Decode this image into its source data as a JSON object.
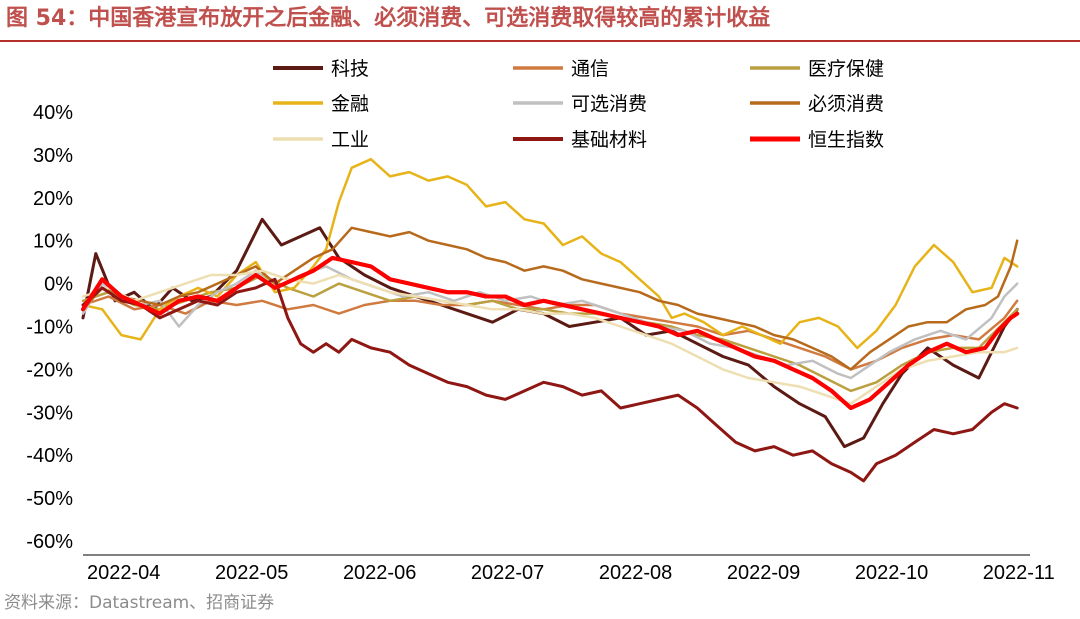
{
  "figure": {
    "title": "图 54：中国香港宣布放开之后金融、必须消费、可选消费取得较高的累计收益",
    "source": "资料来源：Datastream、招商证券"
  },
  "chart_data": {
    "type": "line",
    "title": "图 54：中国香港宣布放开之后金融、必须消费、可选消费取得较高的累计收益",
    "xlabel": "",
    "ylabel": "",
    "ylim": [
      -60,
      40
    ],
    "yticks": [
      "40%",
      "30%",
      "20%",
      "10%",
      "0%",
      "-10%",
      "-20%",
      "-30%",
      "-40%",
      "-50%",
      "-60%"
    ],
    "ytick_values": [
      40,
      30,
      20,
      10,
      0,
      -10,
      -20,
      -30,
      -40,
      -50,
      -60
    ],
    "xlim": [
      0,
      7.4
    ],
    "xticks": [
      "2022-04",
      "2022-05",
      "2022-06",
      "2022-07",
      "2022-08",
      "2022-09",
      "2022-10",
      "2022-11"
    ],
    "xtick_values": [
      0,
      1,
      2,
      3,
      4,
      5,
      6,
      7
    ],
    "legend_position": "top",
    "grid": false,
    "series": [
      {
        "name": "科技",
        "color": "#5b1a13",
        "width": 3,
        "x": [
          0,
          0.1,
          0.25,
          0.4,
          0.55,
          0.7,
          0.85,
          1.0,
          1.2,
          1.4,
          1.55,
          1.7,
          1.85,
          2.0,
          2.2,
          2.4,
          2.6,
          2.8,
          3.0,
          3.2,
          3.4,
          3.6,
          3.8,
          4.0,
          4.2,
          4.4,
          4.6,
          4.8,
          5.0,
          5.2,
          5.4,
          5.6,
          5.8,
          5.95,
          6.1,
          6.25,
          6.4,
          6.6,
          6.8,
          7.0,
          7.2,
          7.3
        ],
        "values": [
          -8,
          7,
          -4,
          -2,
          -6,
          -1,
          -4,
          -3,
          3,
          15,
          9,
          11,
          13,
          6,
          2,
          -1,
          -3,
          -5,
          -7,
          -9,
          -6,
          -7,
          -10,
          -9,
          -8,
          -12,
          -11,
          -14,
          -17,
          -19,
          -24,
          -28,
          -31,
          -38,
          -36,
          -28,
          -21,
          -15,
          -19,
          -22,
          -10,
          -6
        ]
      },
      {
        "name": "通信",
        "color": "#d07a40",
        "width": 2.5,
        "x": [
          0,
          0.2,
          0.4,
          0.6,
          0.8,
          1.0,
          1.2,
          1.4,
          1.6,
          1.8,
          2.0,
          2.2,
          2.4,
          2.6,
          2.8,
          3.0,
          3.2,
          3.4,
          3.6,
          3.8,
          4.0,
          4.2,
          4.4,
          4.6,
          4.8,
          5.0,
          5.2,
          5.4,
          5.6,
          5.8,
          6.0,
          6.2,
          6.4,
          6.6,
          6.8,
          7.0,
          7.2,
          7.3
        ],
        "values": [
          -5,
          -3,
          -6,
          -5,
          -7,
          -4,
          -5,
          -4,
          -6,
          -5,
          -7,
          -5,
          -4,
          -4,
          -5,
          -5,
          -4,
          -5,
          -6,
          -5,
          -5,
          -7,
          -8,
          -9,
          -10,
          -12,
          -11,
          -13,
          -15,
          -17,
          -20,
          -18,
          -15,
          -13,
          -12,
          -13,
          -8,
          -4
        ]
      },
      {
        "name": "医疗保健",
        "color": "#bba040",
        "width": 2.5,
        "x": [
          0,
          0.2,
          0.4,
          0.6,
          0.8,
          1.0,
          1.2,
          1.4,
          1.6,
          1.8,
          2.0,
          2.2,
          2.4,
          2.6,
          2.8,
          3.0,
          3.2,
          3.4,
          3.6,
          3.8,
          4.0,
          4.2,
          4.4,
          4.6,
          4.8,
          5.0,
          5.2,
          5.4,
          5.6,
          5.8,
          6.0,
          6.2,
          6.4,
          6.6,
          6.8,
          7.0,
          7.2,
          7.3
        ],
        "values": [
          -4,
          -2,
          -5,
          -6,
          -4,
          -2,
          -1,
          2,
          -1,
          -3,
          0,
          -2,
          -4,
          -3,
          -4,
          -5,
          -4,
          -6,
          -6,
          -7,
          -7,
          -8,
          -9,
          -10,
          -12,
          -13,
          -15,
          -17,
          -19,
          -22,
          -25,
          -23,
          -19,
          -16,
          -15,
          -15,
          -9,
          -6
        ]
      },
      {
        "name": "金融",
        "color": "#e6b418",
        "width": 2.5,
        "x": [
          0,
          0.15,
          0.3,
          0.45,
          0.6,
          0.75,
          0.9,
          1.05,
          1.2,
          1.35,
          1.5,
          1.65,
          1.8,
          1.9,
          2.0,
          2.1,
          2.25,
          2.4,
          2.55,
          2.7,
          2.85,
          3.0,
          3.15,
          3.3,
          3.45,
          3.6,
          3.75,
          3.9,
          4.05,
          4.2,
          4.35,
          4.5,
          4.6,
          4.7,
          4.85,
          5.0,
          5.15,
          5.3,
          5.45,
          5.6,
          5.75,
          5.9,
          6.05,
          6.2,
          6.35,
          6.5,
          6.65,
          6.8,
          6.95,
          7.1,
          7.2,
          7.3
        ],
        "values": [
          -5,
          -6,
          -12,
          -13,
          -6,
          -3,
          -1,
          -3,
          2,
          5,
          -2,
          -1,
          4,
          8,
          19,
          27,
          29,
          25,
          26,
          24,
          25,
          23,
          18,
          19,
          15,
          14,
          9,
          11,
          7,
          5,
          1,
          -3,
          -8,
          -7,
          -9,
          -12,
          -10,
          -12,
          -14,
          -9,
          -8,
          -10,
          -15,
          -11,
          -5,
          4,
          9,
          5,
          -2,
          -1,
          6,
          4
        ]
      },
      {
        "name": "可选消费",
        "color": "#c0c0c0",
        "width": 2.5,
        "x": [
          0,
          0.15,
          0.3,
          0.45,
          0.6,
          0.75,
          0.9,
          1.05,
          1.2,
          1.35,
          1.5,
          1.7,
          1.9,
          2.1,
          2.3,
          2.5,
          2.7,
          2.9,
          3.1,
          3.3,
          3.5,
          3.7,
          3.9,
          4.1,
          4.3,
          4.5,
          4.7,
          4.9,
          5.1,
          5.3,
          5.5,
          5.7,
          5.9,
          6.0,
          6.1,
          6.3,
          6.5,
          6.7,
          6.9,
          7.1,
          7.2,
          7.3
        ],
        "values": [
          -7,
          0,
          -3,
          -5,
          -4,
          -10,
          -5,
          -2,
          0,
          3,
          -1,
          2,
          4,
          1,
          -1,
          -3,
          -2,
          -4,
          -2,
          -4,
          -3,
          -5,
          -4,
          -6,
          -8,
          -10,
          -11,
          -14,
          -15,
          -17,
          -19,
          -18,
          -21,
          -22,
          -20,
          -16,
          -13,
          -11,
          -13,
          -8,
          -3,
          0
        ]
      },
      {
        "name": "必须消费",
        "color": "#b86a1c",
        "width": 2.5,
        "x": [
          0,
          0.15,
          0.3,
          0.45,
          0.6,
          0.75,
          0.9,
          1.05,
          1.2,
          1.35,
          1.5,
          1.65,
          1.8,
          1.95,
          2.1,
          2.25,
          2.4,
          2.55,
          2.7,
          2.85,
          3.0,
          3.15,
          3.3,
          3.45,
          3.6,
          3.75,
          3.9,
          4.05,
          4.2,
          4.35,
          4.5,
          4.65,
          4.8,
          4.95,
          5.1,
          5.25,
          5.4,
          5.55,
          5.7,
          5.85,
          6.0,
          6.15,
          6.3,
          6.45,
          6.6,
          6.75,
          6.9,
          7.05,
          7.15,
          7.25,
          7.3
        ],
        "values": [
          -6,
          -1,
          -3,
          -4,
          -5,
          -3,
          -2,
          0,
          2,
          4,
          0,
          3,
          6,
          8,
          13,
          12,
          11,
          12,
          10,
          9,
          8,
          6,
          5,
          3,
          4,
          3,
          1,
          0,
          -1,
          -2,
          -4,
          -5,
          -7,
          -8,
          -9,
          -10,
          -12,
          -13,
          -15,
          -17,
          -20,
          -16,
          -13,
          -10,
          -9,
          -9,
          -6,
          -5,
          -3,
          4,
          10
        ]
      },
      {
        "name": "工业",
        "color": "#eedfb2",
        "width": 2.5,
        "x": [
          0,
          0.2,
          0.4,
          0.6,
          0.8,
          1.0,
          1.2,
          1.4,
          1.6,
          1.8,
          2.0,
          2.2,
          2.4,
          2.6,
          2.8,
          3.0,
          3.2,
          3.4,
          3.6,
          3.8,
          4.0,
          4.2,
          4.4,
          4.6,
          4.8,
          5.0,
          5.2,
          5.4,
          5.6,
          5.8,
          6.0,
          6.2,
          6.4,
          6.6,
          6.8,
          7.0,
          7.2,
          7.3
        ],
        "values": [
          -3,
          -1,
          -4,
          -2,
          0,
          2,
          2,
          3,
          1,
          0,
          2,
          0,
          -2,
          -3,
          -4,
          -5,
          -6,
          -6,
          -7,
          -7,
          -8,
          -10,
          -12,
          -14,
          -17,
          -20,
          -22,
          -23,
          -24,
          -26,
          -28,
          -24,
          -20,
          -18,
          -17,
          -16,
          -16,
          -15
        ]
      },
      {
        "name": "基础材料",
        "color": "#8e1714",
        "width": 3,
        "x": [
          0,
          0.15,
          0.3,
          0.45,
          0.6,
          0.75,
          0.9,
          1.05,
          1.2,
          1.35,
          1.5,
          1.6,
          1.7,
          1.8,
          1.9,
          2.0,
          2.1,
          2.25,
          2.4,
          2.55,
          2.7,
          2.85,
          3.0,
          3.15,
          3.3,
          3.45,
          3.6,
          3.75,
          3.9,
          4.05,
          4.2,
          4.35,
          4.5,
          4.65,
          4.8,
          4.95,
          5.1,
          5.25,
          5.4,
          5.55,
          5.7,
          5.85,
          6.0,
          6.1,
          6.2,
          6.35,
          6.5,
          6.65,
          6.8,
          6.95,
          7.1,
          7.2,
          7.3
        ],
        "values": [
          -5,
          -1,
          -4,
          -5,
          -8,
          -6,
          -4,
          -5,
          -2,
          -1,
          1,
          -8,
          -14,
          -16,
          -14,
          -16,
          -13,
          -15,
          -16,
          -19,
          -21,
          -23,
          -24,
          -26,
          -27,
          -25,
          -23,
          -24,
          -26,
          -25,
          -29,
          -28,
          -27,
          -26,
          -29,
          -33,
          -37,
          -39,
          -38,
          -40,
          -39,
          -42,
          -44,
          -46,
          -42,
          -40,
          -37,
          -34,
          -35,
          -34,
          -30,
          -28,
          -29
        ]
      },
      {
        "name": "恒生指数",
        "color": "#fd0000",
        "width": 4,
        "x": [
          0,
          0.15,
          0.3,
          0.45,
          0.6,
          0.75,
          0.9,
          1.05,
          1.2,
          1.35,
          1.5,
          1.65,
          1.8,
          1.95,
          2.1,
          2.25,
          2.4,
          2.55,
          2.7,
          2.85,
          3.0,
          3.15,
          3.3,
          3.45,
          3.6,
          3.75,
          3.9,
          4.05,
          4.2,
          4.35,
          4.5,
          4.65,
          4.8,
          4.95,
          5.1,
          5.25,
          5.4,
          5.55,
          5.7,
          5.85,
          6.0,
          6.15,
          6.3,
          6.45,
          6.6,
          6.75,
          6.9,
          7.05,
          7.15,
          7.25,
          7.3
        ],
        "values": [
          -6,
          1,
          -3,
          -5,
          -7,
          -4,
          -3,
          -4,
          -1,
          2,
          -1,
          1,
          3,
          6,
          5,
          4,
          1,
          0,
          -1,
          -2,
          -2,
          -3,
          -3,
          -5,
          -4,
          -5,
          -6,
          -7,
          -8,
          -9,
          -10,
          -12,
          -11,
          -13,
          -15,
          -17,
          -18,
          -20,
          -22,
          -25,
          -29,
          -27,
          -23,
          -19,
          -16,
          -14,
          -16,
          -15,
          -11,
          -8,
          -7
        ]
      }
    ]
  }
}
